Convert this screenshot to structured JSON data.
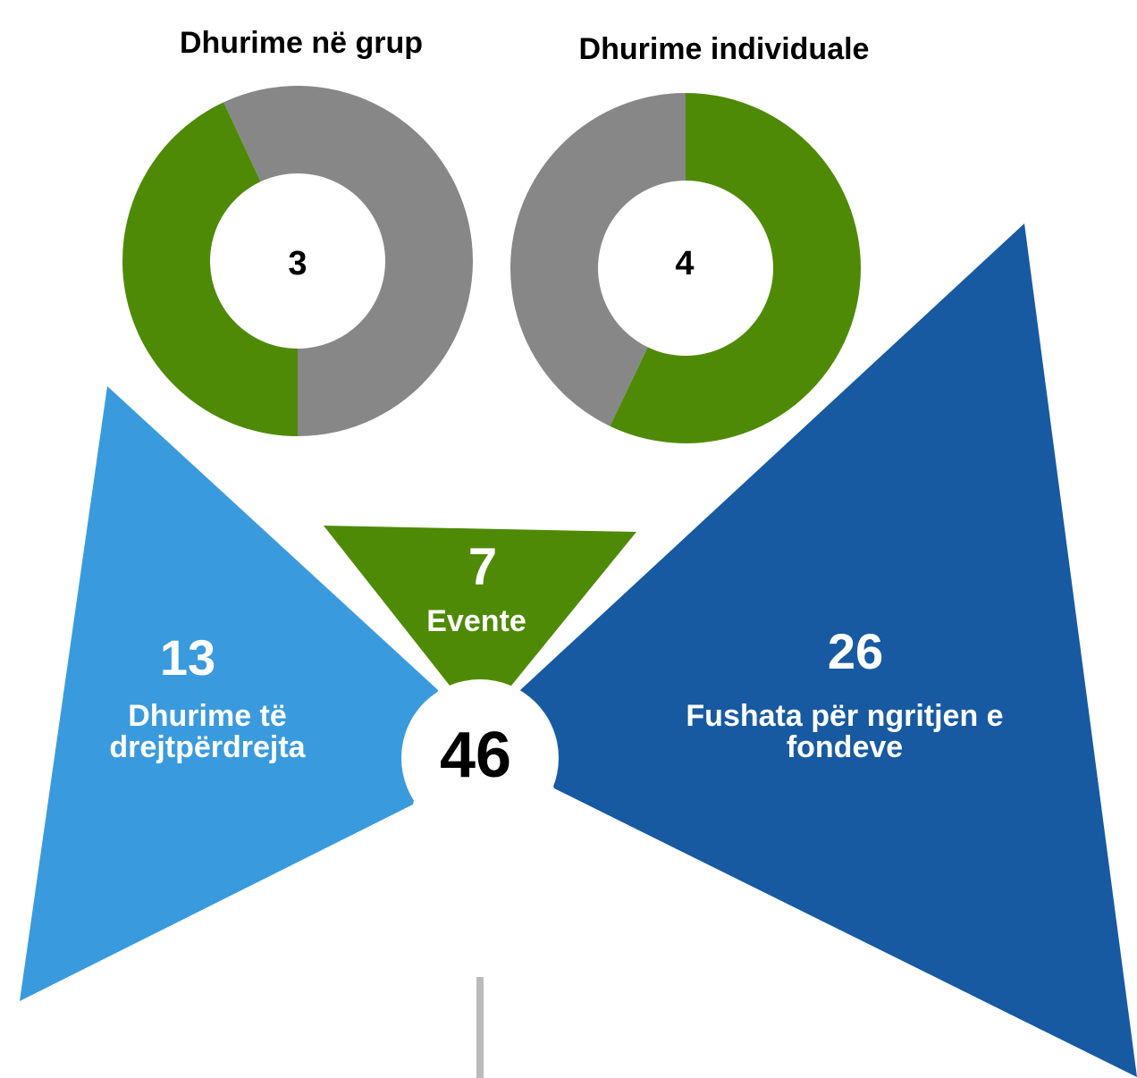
{
  "donuts": [
    {
      "title": "Dhurime në grup",
      "value": "3"
    },
    {
      "title": "Dhurime individuale",
      "value": "4"
    }
  ],
  "segments": [
    {
      "value": "13",
      "label": [
        "Dhurime të",
        "drejtpërdrejta"
      ]
    },
    {
      "value": "7",
      "label": [
        "Evente"
      ]
    },
    {
      "value": "26",
      "label": [
        "Fushata për ngritjen e",
        "fondeve"
      ]
    }
  ],
  "total": "46"
}
